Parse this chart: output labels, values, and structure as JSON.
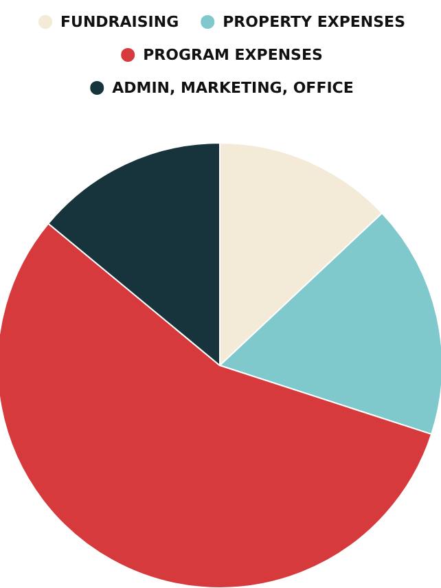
{
  "chart_data": {
    "type": "pie",
    "categories": [
      "FUNDRAISING",
      "PROPERTY EXPENSES",
      "PROGRAM EXPENSES",
      "ADMIN, MARKETING, OFFICE"
    ],
    "values": [
      13,
      17,
      56,
      14
    ],
    "colors": [
      "#f3ead8",
      "#7fc8cc",
      "#d63a3c",
      "#17343d"
    ],
    "legend": "top"
  }
}
